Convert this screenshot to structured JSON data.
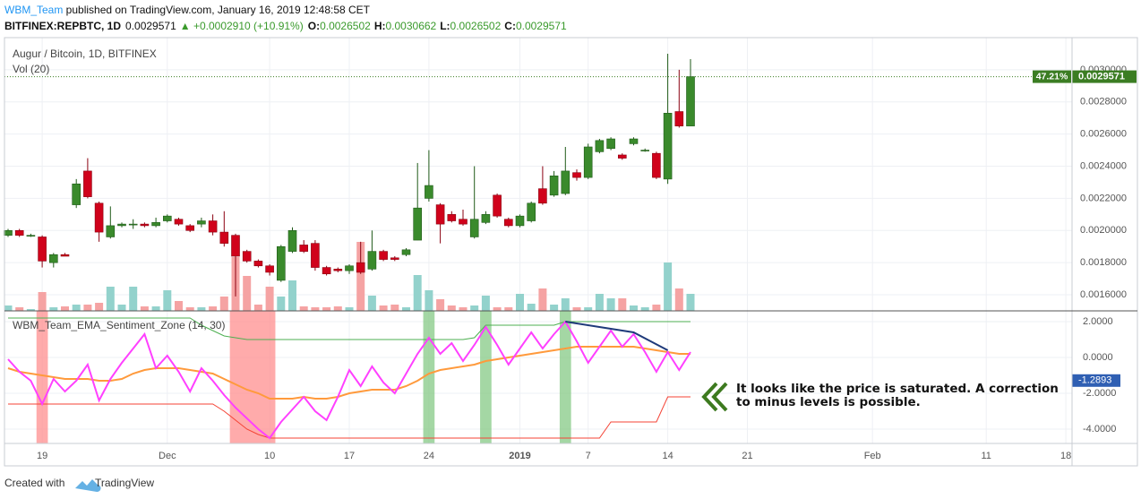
{
  "header": {
    "author": "WBM_Team",
    "published": " published on TradingView.com, January 16, 2019 12:48:58 CET",
    "symbol": "BITFINEX:REPBTC, 1D",
    "last": "0.0029571",
    "change": "▲ +0.0002910 (+10.91%)",
    "ohlc": [
      {
        "label": "O:",
        "value": "0.0026502"
      },
      {
        "label": "H:",
        "value": "0.0030662"
      },
      {
        "label": "L:",
        "value": "0.0026502"
      },
      {
        "label": "C:",
        "value": "0.0029571"
      }
    ]
  },
  "chart_data": {
    "type": "candlestick",
    "title": "Augur / Bitcoin, 1D, BITFINEX",
    "categories": [
      null,
      null,
      null,
      "19",
      null,
      null,
      null,
      null,
      null,
      null,
      null,
      null,
      null,
      null,
      "Dec",
      null,
      null,
      null,
      null,
      null,
      null,
      null,
      null,
      "10",
      null,
      null,
      null,
      null,
      null,
      null,
      "17",
      null,
      null,
      null,
      null,
      null,
      null,
      "24",
      null,
      null,
      null,
      null,
      null,
      null,
      null,
      "2019",
      null,
      null,
      null,
      null,
      null,
      "7",
      null,
      null,
      null,
      null,
      null,
      null,
      "14",
      null,
      null,
      null,
      null,
      null,
      null,
      "21",
      null,
      null,
      null,
      null,
      null,
      null,
      null,
      null,
      null,
      null,
      "Feb",
      null,
      null,
      null,
      null,
      null,
      null,
      null,
      null,
      null,
      "11",
      null,
      null,
      null,
      null,
      null,
      null,
      "18"
    ],
    "open": [
      0.00197,
      0.002,
      0.00197,
      0.00196,
      0.0018,
      0.00185,
      0.00216,
      0.00237,
      0.00217,
      0.00196,
      0.00203,
      0.00204,
      0.00204,
      0.00203,
      0.00206,
      0.00207,
      0.00203,
      0.00204,
      0.00206,
      0.00199,
      0.00197,
      0.00187,
      0.00181,
      0.00178,
      0.00169,
      0.00187,
      0.00191,
      0.00192,
      0.00177,
      0.00176,
      0.00175,
      0.0018,
      0.00176,
      0.00187,
      0.00183,
      0.00185,
      0.00194,
      0.0022,
      0.00216,
      0.0021,
      0.00207,
      0.00196,
      0.00205,
      0.00222,
      0.00207,
      0.00203,
      0.00206,
      0.00226,
      0.00222,
      0.00223,
      0.00236,
      0.00233,
      0.00249,
      0.00251,
      0.00247,
      0.00254,
      0.0025,
      0.00248,
      0.00232,
      0.00274,
      0.0026502,
      null,
      null,
      null,
      null,
      null,
      null,
      null,
      null,
      null,
      null,
      null,
      null,
      null,
      null,
      null,
      null,
      null,
      null,
      null,
      null,
      null,
      null,
      null,
      null,
      null,
      null,
      null,
      null,
      null,
      null,
      null,
      null,
      null
    ],
    "high": [
      0.00201,
      0.00201,
      0.00198,
      0.00197,
      0.00186,
      0.00186,
      0.00232,
      0.00245,
      0.00218,
      0.00215,
      0.00205,
      0.00207,
      0.00205,
      0.00208,
      0.0021,
      0.00208,
      0.00204,
      0.00208,
      0.0021,
      0.00212,
      0.00198,
      0.00188,
      0.00182,
      0.00179,
      0.00191,
      0.00202,
      0.00194,
      0.00194,
      0.00178,
      0.00177,
      0.00179,
      0.00193,
      0.002,
      0.00188,
      0.00184,
      0.00189,
      0.00242,
      0.0025,
      0.00217,
      0.00212,
      0.00213,
      0.0024,
      0.00212,
      0.00223,
      0.00208,
      0.0021,
      0.00218,
      0.0024,
      0.00237,
      0.00252,
      0.00238,
      0.00254,
      0.00257,
      0.00258,
      0.00248,
      0.00258,
      0.00251,
      0.00249,
      0.0031,
      0.003,
      0.0030662,
      null,
      null,
      null,
      null,
      null,
      null,
      null,
      null,
      null,
      null,
      null,
      null,
      null,
      null,
      null,
      null,
      null,
      null,
      null,
      null,
      null,
      null,
      null,
      null,
      null,
      null,
      null,
      null,
      null,
      null,
      null,
      null,
      null
    ],
    "low": [
      0.00196,
      0.00196,
      0.00196,
      0.00177,
      0.00177,
      0.00184,
      0.00214,
      0.0022,
      0.00193,
      0.00195,
      0.00202,
      0.00201,
      0.00202,
      0.00202,
      0.00205,
      0.00203,
      0.00199,
      0.00202,
      0.00197,
      0.0019,
      0.00159,
      0.0018,
      0.00177,
      0.00172,
      0.00168,
      0.00186,
      0.00186,
      0.00175,
      0.00172,
      0.00174,
      0.00173,
      0.00173,
      0.00175,
      0.00181,
      0.00181,
      0.00184,
      0.00194,
      0.00218,
      0.00192,
      0.00205,
      0.00203,
      0.00195,
      0.00204,
      0.00208,
      0.00202,
      0.00202,
      0.00205,
      0.00216,
      0.00221,
      0.00222,
      0.00231,
      0.00232,
      0.00248,
      0.0025,
      0.00244,
      0.00253,
      0.00249,
      0.00232,
      0.00229,
      0.00264,
      0.0026502,
      null,
      null,
      null,
      null,
      null,
      null,
      null,
      null,
      null,
      null,
      null,
      null,
      null,
      null,
      null,
      null,
      null,
      null,
      null,
      null,
      null,
      null,
      null,
      null,
      null,
      null,
      null,
      null,
      null,
      null,
      null,
      null,
      null
    ],
    "close": [
      0.002,
      0.00197,
      0.00197,
      0.00181,
      0.00185,
      0.00184,
      0.00229,
      0.00221,
      0.00199,
      0.00203,
      0.00204,
      0.00204,
      0.00203,
      0.00205,
      0.00209,
      0.00204,
      0.002,
      0.00206,
      0.00199,
      0.00192,
      0.00184,
      0.00181,
      0.00178,
      0.00174,
      0.0019,
      0.002,
      0.00187,
      0.00177,
      0.00173,
      0.00175,
      0.00178,
      0.00174,
      0.00187,
      0.00182,
      0.00182,
      0.00188,
      0.00214,
      0.00228,
      0.00204,
      0.00206,
      0.00204,
      0.00207,
      0.0021,
      0.00209,
      0.00203,
      0.00209,
      0.00217,
      0.00217,
      0.00234,
      0.00237,
      0.00233,
      0.00252,
      0.00256,
      0.00257,
      0.00245,
      0.00257,
      0.0025,
      0.00233,
      0.00273,
      0.00265,
      0.0029571,
      null,
      null,
      null,
      null,
      null,
      null,
      null,
      null,
      null,
      null,
      null,
      null,
      null,
      null,
      null,
      null,
      null,
      null,
      null,
      null,
      null,
      null,
      null,
      null,
      null,
      null,
      null,
      null,
      null,
      null,
      null,
      null,
      null
    ],
    "up_color": "#3a8a2c",
    "up_edge": "#1f5a18",
    "down_color": "#d0021b",
    "down_edge": "#8a0010",
    "ylim": [
      0.0015,
      0.0032
    ],
    "yticks": [
      {
        "value": 0.0016,
        "label": "0.0016000"
      },
      {
        "value": 0.0018,
        "label": "0.0018000"
      },
      {
        "value": 0.002,
        "label": "0.0020000"
      },
      {
        "value": 0.0022,
        "label": "0.0022000"
      },
      {
        "value": 0.0024,
        "label": "0.0024000"
      },
      {
        "value": 0.0026,
        "label": "0.0026000"
      },
      {
        "value": 0.0028,
        "label": "0.0028000"
      },
      {
        "value": 0.003,
        "label": "0.0030000"
      }
    ],
    "grid": true,
    "last_price": {
      "value": 0.0029571,
      "change": "47.21%",
      "color": "#3b7d23"
    },
    "volume": {
      "name": "Vol (20)",
      "ylim": [
        0,
        305
      ],
      "up_color": "#93d2cc",
      "down_color": "#f5a3a3",
      "values": [
        6,
        4,
        2,
        21,
        4,
        5,
        7,
        7,
        9,
        27,
        7,
        27,
        5,
        5,
        23,
        11,
        4,
        4,
        5,
        16,
        60,
        39,
        7,
        27,
        16,
        34,
        5,
        4,
        4,
        5,
        4,
        77,
        17,
        6,
        7,
        4,
        40,
        23,
        13,
        6,
        4,
        6,
        17,
        4,
        4,
        19,
        8,
        25,
        7,
        14,
        4,
        4,
        19,
        14,
        14,
        6,
        4,
        7,
        54,
        25,
        19,
        null,
        null,
        null,
        null,
        null,
        null,
        null,
        null,
        null,
        null,
        null,
        null,
        null,
        null,
        null,
        null,
        null,
        null,
        null,
        null,
        null,
        null,
        null,
        null,
        null,
        null,
        null,
        null,
        null,
        null,
        null,
        null,
        null
      ]
    },
    "indicator": {
      "name": "WBM_Team_EMA_Sentiment_Zone (14, 30)",
      "ylim": [
        -4.8,
        2.6
      ],
      "yticks": [
        {
          "value": 2,
          "label": "2.0000"
        },
        {
          "value": 0,
          "label": "0.0000"
        },
        {
          "value": -2,
          "label": "-2.0000"
        },
        {
          "value": -4,
          "label": "-4.0000"
        }
      ],
      "zones": [
        {
          "from": 3,
          "to": 3,
          "color": "#ff8f8f"
        },
        {
          "from": 20,
          "to": 23,
          "color": "#ff8f8f"
        },
        {
          "from": 37,
          "to": 37,
          "color": "#86c986"
        },
        {
          "from": 42,
          "to": 42,
          "color": "#86c986"
        },
        {
          "from": 49,
          "to": 49,
          "color": "#86c986"
        }
      ],
      "series": [
        {
          "color": "#4caf50",
          "width": 1,
          "values": [
            2.2,
            2.2,
            2.2,
            2.2,
            2.2,
            2.2,
            2.2,
            2.2,
            2.2,
            2.2,
            2.2,
            2.2,
            2.2,
            2.2,
            2.2,
            2.2,
            2.2,
            1.8,
            1.5,
            1.2,
            1.1,
            1.0,
            1.0,
            1.0,
            1.0,
            1.0,
            1.0,
            1.0,
            1.0,
            1.0,
            1.0,
            1.0,
            1.0,
            1.0,
            1.0,
            1.0,
            1.0,
            1.0,
            1.0,
            1.0,
            1.0,
            1.1,
            1.8,
            1.8,
            1.8,
            1.8,
            1.8,
            1.8,
            1.8,
            2.0,
            2.0,
            2.0,
            2.0,
            2.0,
            2.0,
            2.0,
            2.0,
            2.0,
            2.0,
            2.0,
            2.0,
            null,
            null,
            null,
            null,
            null,
            null,
            null,
            null,
            null,
            null,
            null,
            null,
            null,
            null,
            null,
            null,
            null,
            null,
            null,
            null,
            null,
            null,
            null,
            null,
            null,
            null,
            null,
            null,
            null,
            null,
            null,
            null,
            null
          ]
        },
        {
          "color": "#f44336",
          "width": 1,
          "values": [
            -2.6,
            -2.6,
            -2.6,
            -2.6,
            -2.6,
            -2.6,
            -2.6,
            -2.6,
            -2.6,
            -2.6,
            -2.6,
            -2.6,
            -2.6,
            -2.6,
            -2.6,
            -2.6,
            -2.6,
            -2.6,
            -2.6,
            -3.0,
            -3.5,
            -4.0,
            -4.3,
            -4.5,
            -4.5,
            -4.5,
            -4.5,
            -4.5,
            -4.5,
            -4.5,
            -4.5,
            -4.5,
            -4.5,
            -4.5,
            -4.5,
            -4.5,
            -4.5,
            -4.5,
            -4.5,
            -4.5,
            -4.5,
            -4.5,
            -4.5,
            -4.5,
            -4.5,
            -4.5,
            -4.5,
            -4.5,
            -4.5,
            -4.5,
            -4.5,
            -4.5,
            -4.5,
            -3.6,
            -3.6,
            -3.6,
            -3.6,
            -3.6,
            -2.2,
            -2.2,
            -2.2,
            null,
            null,
            null,
            null,
            null,
            null,
            null,
            null,
            null,
            null,
            null,
            null,
            null,
            null,
            null,
            null,
            null,
            null,
            null,
            null,
            null,
            null,
            null,
            null,
            null,
            null,
            null,
            null,
            null,
            null,
            null,
            null,
            null
          ]
        },
        {
          "color": "#ff9a3c",
          "width": 2,
          "values": [
            -0.6,
            -0.8,
            -0.9,
            -1.0,
            -1.1,
            -1.2,
            -1.2,
            -1.2,
            -1.3,
            -1.3,
            -1.2,
            -0.9,
            -0.7,
            -0.6,
            -0.6,
            -0.6,
            -0.7,
            -0.8,
            -0.9,
            -1.2,
            -1.5,
            -1.8,
            -2.0,
            -2.3,
            -2.3,
            -2.3,
            -2.2,
            -2.3,
            -2.3,
            -2.2,
            -2.0,
            -1.9,
            -1.8,
            -1.8,
            -1.8,
            -1.6,
            -1.3,
            -0.9,
            -0.7,
            -0.6,
            -0.5,
            -0.4,
            -0.2,
            -0.1,
            0.0,
            0.1,
            0.2,
            0.3,
            0.4,
            0.5,
            0.6,
            0.6,
            0.6,
            0.6,
            0.6,
            0.6,
            0.5,
            0.4,
            0.3,
            0.2,
            0.2,
            null,
            null,
            null,
            null,
            null,
            null,
            null,
            null,
            null,
            null,
            null,
            null,
            null,
            null,
            null,
            null,
            null,
            null,
            null,
            null,
            null,
            null,
            null,
            null,
            null,
            null,
            null,
            null,
            null,
            null,
            null,
            null,
            null
          ]
        },
        {
          "color": "#ff40ff",
          "width": 2,
          "values": [
            -0.1,
            -0.8,
            -1.3,
            -2.6,
            -1.2,
            -1.9,
            -1.3,
            -0.4,
            -2.4,
            -1.2,
            -0.3,
            0.5,
            1.3,
            -0.6,
            0.1,
            -0.8,
            -1.9,
            -0.6,
            -1.3,
            -2.1,
            -2.8,
            -3.4,
            -4.0,
            -4.5,
            -3.6,
            -2.9,
            -2.2,
            -3.0,
            -3.5,
            -2.2,
            -0.7,
            -1.6,
            -0.5,
            -1.4,
            -2.0,
            -0.9,
            0.2,
            1.1,
            0.2,
            0.8,
            -0.2,
            0.7,
            1.7,
            0.7,
            -0.4,
            0.5,
            1.4,
            0.5,
            1.3,
            2.0,
            0.9,
            -0.3,
            0.6,
            1.5,
            0.6,
            1.3,
            0.3,
            -0.8,
            0.3,
            -0.7,
            0.3,
            null,
            null,
            null,
            null,
            null,
            null,
            null,
            null,
            null,
            null,
            null,
            null,
            null,
            null,
            null,
            null,
            null,
            null,
            null,
            null,
            null,
            null,
            null,
            null,
            null,
            null,
            null,
            null,
            null,
            null,
            null,
            null,
            null
          ]
        }
      ],
      "trendline": {
        "color": "#1f3a7a",
        "x": [
          49,
          55,
          58
        ],
        "values": [
          2.0,
          1.4,
          0.4
        ]
      },
      "last_value": -1.2893,
      "last_value_color": "#2f5fb3"
    },
    "annotation": [
      "It looks like the price is saturated. A correction",
      "to minus levels is possible."
    ]
  },
  "footer": {
    "text": "Created with",
    "brand": "TradingView"
  }
}
